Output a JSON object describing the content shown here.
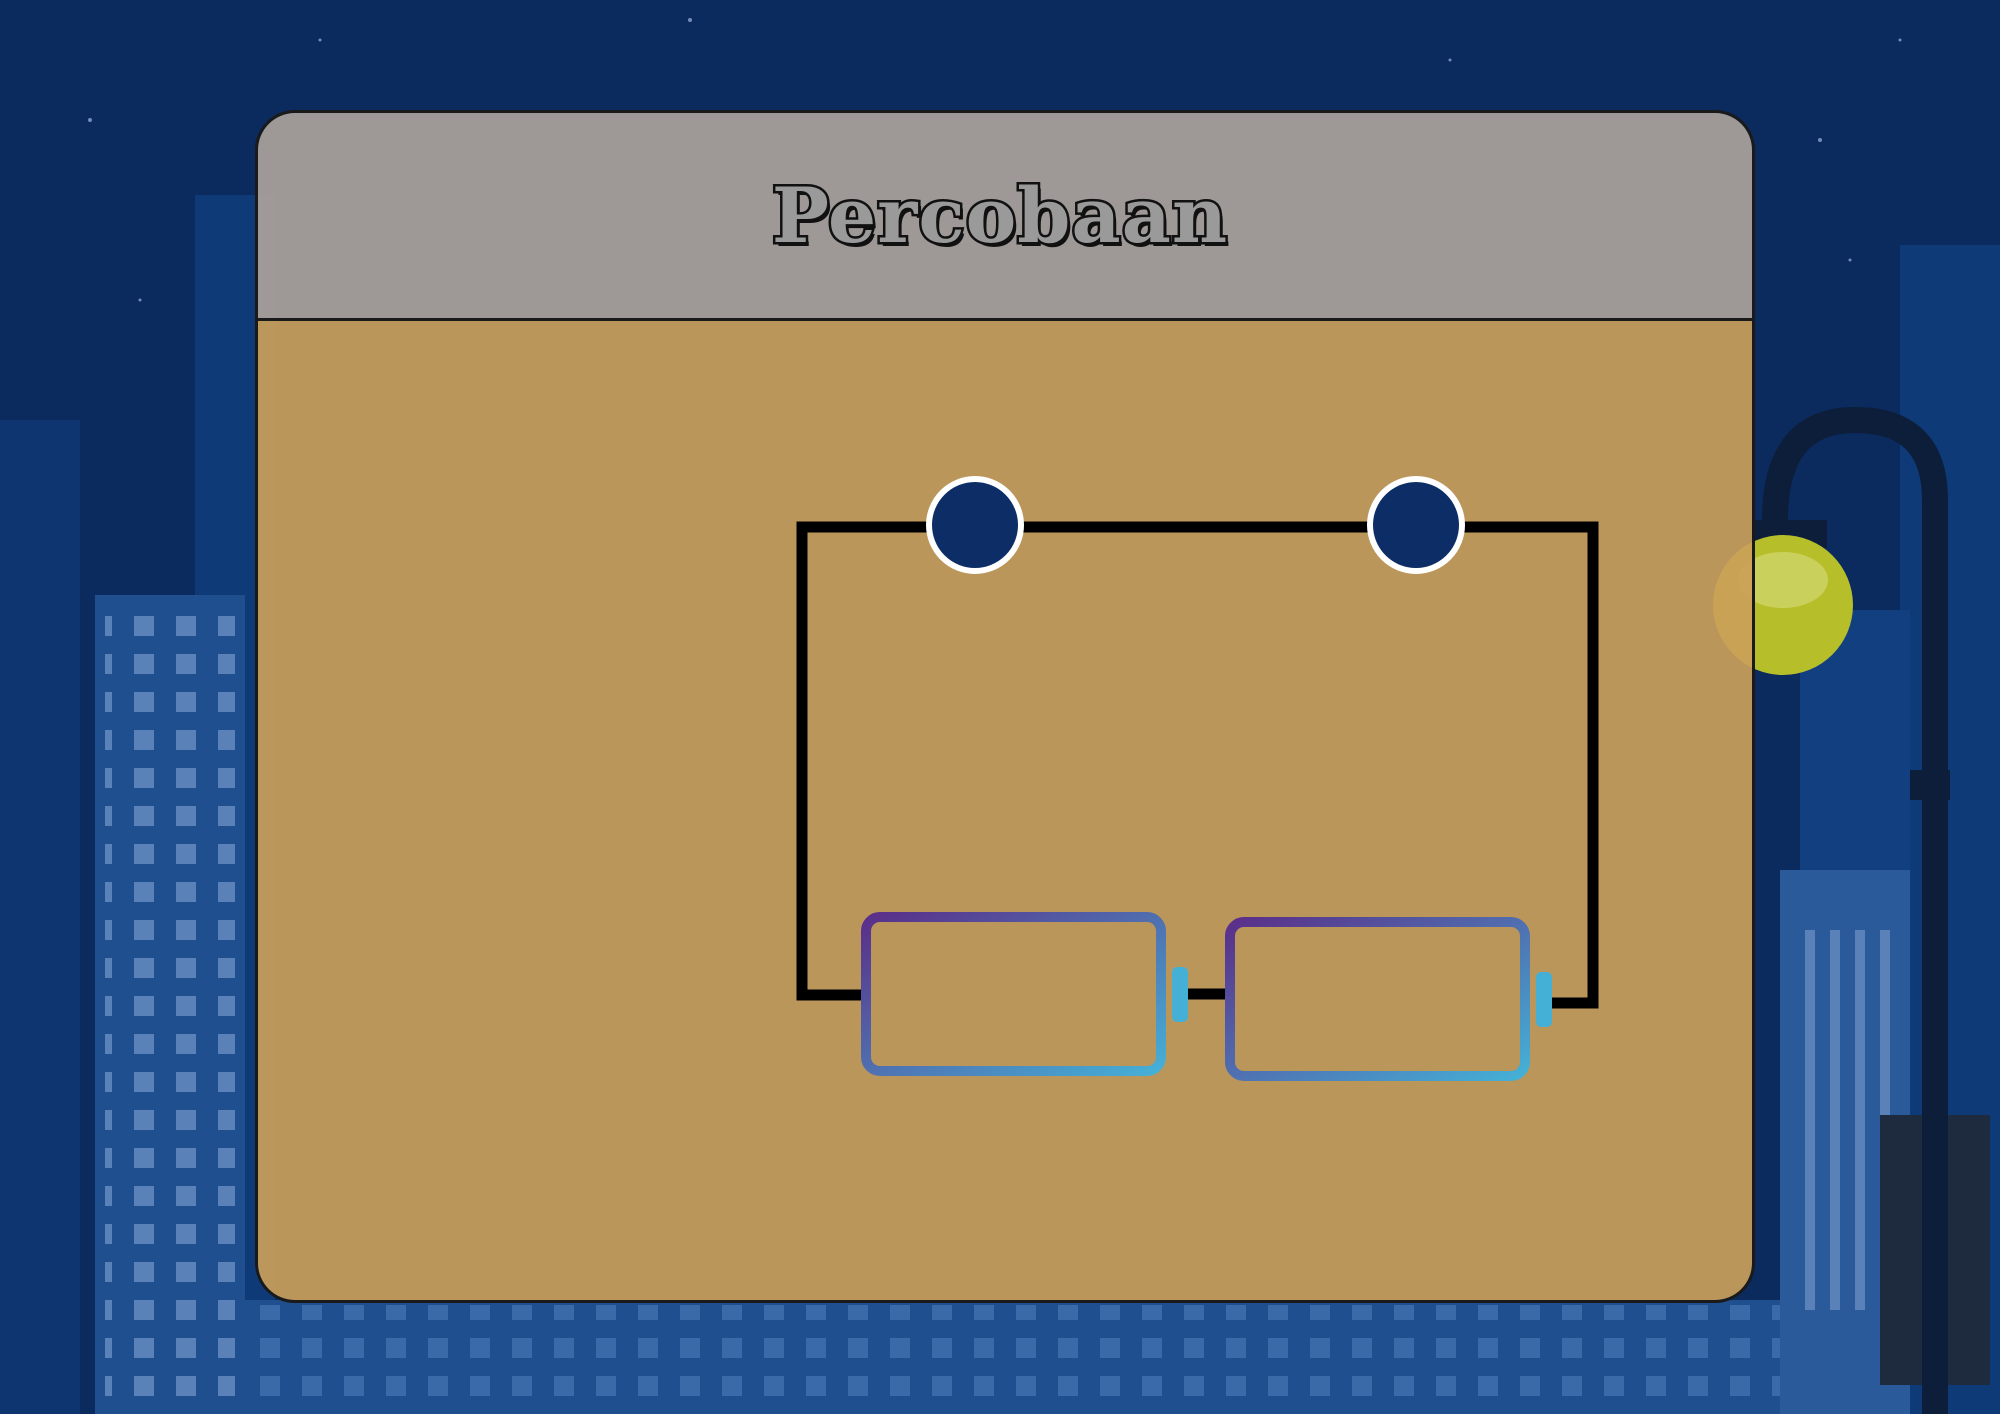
{
  "panel": {
    "title": "Percobaan"
  },
  "colors": {
    "sky": "#0b2a5e",
    "building": "#1f4f8f",
    "panel_body": "#cb9f5a",
    "panel_header": "#aaa09b",
    "terminal_fill": "#0c2d66",
    "wire": "#000000",
    "battery_gradient_start": "#5a2f8a",
    "battery_gradient_end": "#45b0d6",
    "lamp": "#b6bf2a"
  },
  "circuit": {
    "terminals": [
      {
        "name": "terminal-left"
      },
      {
        "name": "terminal-right"
      }
    ],
    "batteries": [
      {
        "name": "battery-left"
      },
      {
        "name": "battery-right"
      }
    ]
  },
  "icons": {
    "street_lamp": "street-lamp-icon"
  }
}
